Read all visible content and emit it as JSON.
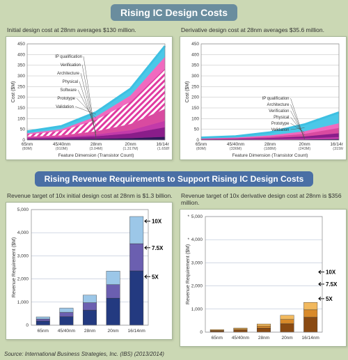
{
  "source_line": "Source: International Business Strategies, Inc. (IBS) (2013/2014)",
  "section1": {
    "title": "Rising IC Design Costs",
    "title_bg": "#6a8d9e",
    "title_fontsize": 14,
    "caption_left": "Initial design cost at 28nm averages $130 million.",
    "caption_right": "Derivative design cost at 28nm averages $35.6 million.",
    "nodes": [
      "65nm",
      "45/40nm",
      "28nm",
      "20nm",
      "16/14nm"
    ],
    "nodes_sub": [
      "(80M)",
      "(910M)",
      "(3.04M)",
      "(1.317M)",
      "(1.658M)"
    ],
    "nodes_sub_right": [
      "(80M)",
      "(336M)",
      "(188M)",
      "(243M)",
      "(315M)"
    ],
    "xlabel_left": "Feature Dimension (Transistor Count)",
    "xlabel_right": "Feature Dimension (Transistor Count)",
    "left_chart": {
      "type": "area",
      "ylabel": "Cost ($M)",
      "ylim": [
        0,
        450
      ],
      "ytick_step": 50,
      "background_color": "#ffffff",
      "grid_color": "#bbbbbb",
      "series": [
        {
          "name": "IP qualification",
          "fill": "#2f1a5a",
          "values": [
            3,
            4,
            6,
            9,
            15
          ]
        },
        {
          "name": "Verification",
          "fill": "#8a1d8a",
          "values": [
            5,
            7,
            12,
            22,
            45
          ]
        },
        {
          "name": "Architecture",
          "fill": "#c23aa9",
          "values": [
            3,
            4,
            8,
            15,
            30
          ]
        },
        {
          "name": "Physical",
          "fill": "#d94aa0",
          "values": [
            4,
            6,
            14,
            28,
            55
          ]
        },
        {
          "name": "Software",
          "fill": "#e85bb0",
          "pattern": "hatch",
          "values": [
            12,
            22,
            55,
            105,
            190
          ]
        },
        {
          "name": "Prototype",
          "fill": "#f06abf",
          "values": [
            5,
            8,
            15,
            30,
            55
          ]
        },
        {
          "name": "Validation",
          "fill": "#4bc8e8",
          "values": [
            8,
            14,
            20,
            31,
            50
          ]
        }
      ],
      "line_top_color": "#3ec0e2",
      "line_width": 3
    },
    "right_chart": {
      "type": "area",
      "ylabel": "Cost ($M)",
      "ylim": [
        0,
        450
      ],
      "ytick_step": 50,
      "background_color": "#ffffff",
      "grid_color": "#bbbbbb",
      "series": [
        {
          "name": "IP qualification",
          "fill": "#2f1a5a",
          "values": [
            1,
            1.5,
            2,
            3,
            5
          ]
        },
        {
          "name": "Architecture",
          "fill": "#c23aa9",
          "values": [
            1,
            1.5,
            3,
            5,
            9
          ]
        },
        {
          "name": "Verification",
          "fill": "#8a1d8a",
          "values": [
            2,
            3,
            5,
            9,
            18
          ]
        },
        {
          "name": "Physical",
          "fill": "#d94aa0",
          "values": [
            2,
            3,
            6,
            12,
            25
          ]
        },
        {
          "name": "Prototype",
          "fill": "#f06abf",
          "values": [
            2,
            3,
            6,
            12,
            22
          ]
        },
        {
          "name": "Validation",
          "fill": "#4bc8e8",
          "values": [
            3,
            5,
            13.6,
            32,
            50
          ]
        }
      ],
      "line_top_color": "#3ec0e2",
      "line_width": 3
    }
  },
  "section2": {
    "title": "Rising Revenue Requirements to Support Rising IC Design Costs",
    "title_bg": "#4a6fa5",
    "title_fontsize": 12,
    "caption_left": "Revenue target of 10x initial design cost at 28nm is $1.3 billion.",
    "caption_right": "Revenue target of 10x derivative design cost at 28nm is $356 million.",
    "nodes": [
      "65nm",
      "45/40nm",
      "28nm",
      "20nm",
      "16/14nm"
    ],
    "left_chart": {
      "type": "stacked_bar",
      "ylabel": "Revenue Requirement ($M)",
      "ylim": [
        0,
        5000
      ],
      "ytick_step": 1000,
      "background_color": "#ffffff",
      "grid_color": "#b7c2d4",
      "bar_width": 0.58,
      "segments": [
        {
          "name": "5X",
          "fill": "#233a80",
          "values": [
            180,
            370,
            650,
            1170,
            2350
          ]
        },
        {
          "name": "7.5X",
          "fill": "#6b5fb0",
          "values": [
            90,
            185,
            325,
            585,
            1175
          ]
        },
        {
          "name": "10X",
          "fill": "#9cc7e8",
          "values": [
            90,
            185,
            325,
            585,
            1175
          ]
        }
      ],
      "multiplier_labels": [
        {
          "text": "10X",
          "y_value": 4500
        },
        {
          "text": "7.5X",
          "y_value": 3350
        },
        {
          "text": "5X",
          "y_value": 2100
        }
      ]
    },
    "right_chart": {
      "type": "stacked_bar",
      "ylabel": "Revenue Requirement ($M)",
      "ylim": [
        0,
        5000
      ],
      "ytick_step": 1000,
      "background_color": "#ffffff",
      "grid_color": "#b7c2d4",
      "bar_width": 0.58,
      "segments": [
        {
          "name": "5X",
          "fill": "#8a4a12",
          "values": [
            55,
            90,
            178,
            365,
            645
          ]
        },
        {
          "name": "7.5X",
          "fill": "#d98a2a",
          "values": [
            28,
            45,
            89,
            183,
            323
          ]
        },
        {
          "name": "10X",
          "fill": "#f2b95e",
          "values": [
            28,
            45,
            89,
            183,
            322
          ]
        }
      ],
      "multiplier_labels": [
        {
          "text": "10X",
          "y_value": 2600
        },
        {
          "text": "7.5X",
          "y_value": 2080
        },
        {
          "text": "5X",
          "y_value": 1450
        }
      ],
      "ytick_stars": [
        4000,
        5000
      ]
    }
  }
}
